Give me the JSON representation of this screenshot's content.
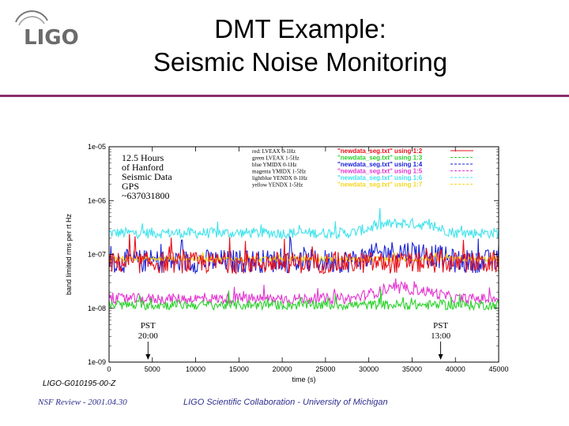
{
  "slide": {
    "title_line1": "DMT Example:",
    "title_line2": "Seismic Noise Monitoring",
    "logo_text": "LIGO",
    "doc_id": "LIGO-G010195-00-Z",
    "footer_left": "NSF Review - 2001.04.30",
    "footer_center": "LIGO Scientific Collaboration - University of Michigan",
    "accent_color": "#8b2d6d"
  },
  "chart_data": {
    "type": "line",
    "xlabel": "time (s)",
    "ylabel": "band limited rms per rt Hz",
    "xlim": [
      0,
      45000
    ],
    "ylim": [
      1e-09,
      1e-05
    ],
    "yscale": "log",
    "x_ticks": [
      0,
      5000,
      10000,
      15000,
      20000,
      25000,
      30000,
      35000,
      40000,
      45000
    ],
    "y_ticks": [
      "1e-05",
      "1e-06",
      "1e-07",
      "1e-08",
      "1e-09"
    ],
    "legend_placement": "top-right",
    "annotation": [
      "12.5 Hours",
      "of Hanford",
      "Seismic Data",
      "GPS",
      "~637031800"
    ],
    "markers": [
      {
        "label_line1": "PST",
        "label_line2": "20:00",
        "x": 4500
      },
      {
        "label_line1": "PST",
        "label_line2": "13:00",
        "x": 38300
      }
    ],
    "series": [
      {
        "name": "red: LVEAX 0-1Hz",
        "command": "\"newdata_seg.txt\" using 1:2",
        "color": "#e8101a",
        "base": 7e-08,
        "spread": 0.2
      },
      {
        "name": "green LVEAX 1-5Hz",
        "command": "\"newdata_seg.txt\" using 1:3",
        "color": "#2bd12b",
        "base": 1.15e-08,
        "spread": 0.09
      },
      {
        "name": "blue YMIDX 0-1Hz",
        "command": "\"newdata_seg.txt\" using 1:4",
        "color": "#1a22d8",
        "base": 7.5e-08,
        "spread": 0.22
      },
      {
        "name": "magenta YMIDX 1-5Hz",
        "command": "\"newdata_seg.txt\" using 1:5",
        "color": "#e436d2",
        "base": 1.5e-08,
        "spread": 0.1
      },
      {
        "name": "lightblue YENDX 0-1Hz",
        "command": "\"newdata_seg.txt\" using 1:6",
        "color": "#3fe3ec",
        "base": 2.5e-07,
        "spread": 0.1
      },
      {
        "name": "yellow YENDX 1-5Hz",
        "command": "\"newdata_seg.txt\" using 1:7",
        "color": "#f3d820",
        "base": 8.2e-08,
        "spread": 0.05
      }
    ]
  }
}
